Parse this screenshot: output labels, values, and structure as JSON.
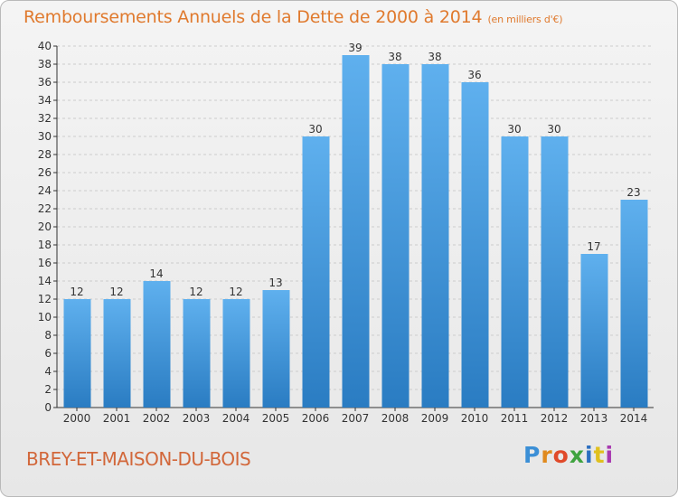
{
  "title": "Remboursements Annuels de la Dette de 2000 à 2014",
  "unit_note": "(en milliers d'€)",
  "place_name": "BREY-ET-MAISON-DU-BOIS",
  "logo": {
    "text": "Proxiti",
    "letter_colors": [
      "#3b8fd6",
      "#e08a1e",
      "#e04a2a",
      "#3fa33f",
      "#2c6fc0",
      "#e0c01e",
      "#a83ab0"
    ]
  },
  "colors": {
    "bar_top": "#5fb0ee",
    "bar_bottom": "#2a7cc2",
    "title": "#e07a2e",
    "place": "#d2673a",
    "axis": "#333333",
    "grid": "#cccccc"
  },
  "chart_data": {
    "type": "bar",
    "categories": [
      "2000",
      "2001",
      "2002",
      "2003",
      "2004",
      "2005",
      "2006",
      "2007",
      "2008",
      "2009",
      "2010",
      "2011",
      "2012",
      "2013",
      "2014"
    ],
    "values": [
      12,
      12,
      14,
      12,
      12,
      13,
      30,
      39,
      38,
      38,
      36,
      30,
      30,
      17,
      23
    ],
    "ylim": [
      0,
      40
    ],
    "ytick_step": 2,
    "grid": true,
    "data_labels": true
  }
}
